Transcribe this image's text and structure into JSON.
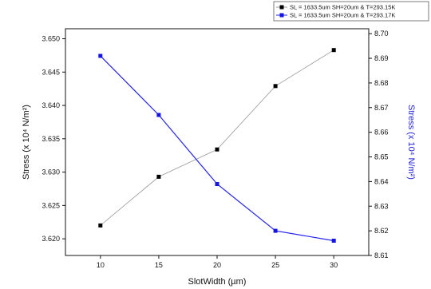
{
  "chart_data": {
    "type": "line",
    "x": [
      10,
      15,
      20,
      25,
      30
    ],
    "xlabel": "SlotWidth (µm)",
    "xlim": [
      7,
      33
    ],
    "xticks": [
      10,
      15,
      20,
      25,
      30
    ],
    "ylabel_left": "Stress (x 10⁴ N/m²)",
    "ylabel_right": "Stress (x 10⁴ N/m²)",
    "ylim_left": [
      3.6175,
      3.6515
    ],
    "ylim_right": [
      8.61,
      8.702
    ],
    "yticks_left": [
      "3.620",
      "3.625",
      "3.630",
      "3.635",
      "3.640",
      "3.645",
      "3.650"
    ],
    "yticks_right": [
      "8.61",
      "8.62",
      "8.63",
      "8.64",
      "8.65",
      "8.66",
      "8.67",
      "8.68",
      "8.69",
      "8.70"
    ],
    "grid": false,
    "legend_position": "top-right",
    "series": [
      {
        "name": "SL = 1633.5um SH=20um  & T=293.15K",
        "axis": "left",
        "color": "#000000",
        "line_color": "#999999",
        "marker": "square",
        "values": [
          3.622,
          3.6293,
          3.6334,
          3.6429,
          3.6483
        ]
      },
      {
        "name": "SL = 1633.5um SH=20um  & T=293.17K",
        "axis": "right",
        "color": "#1414e6",
        "line_color": "#2222ee",
        "marker": "square",
        "values": [
          8.691,
          8.667,
          8.639,
          8.62,
          8.616
        ]
      }
    ]
  }
}
